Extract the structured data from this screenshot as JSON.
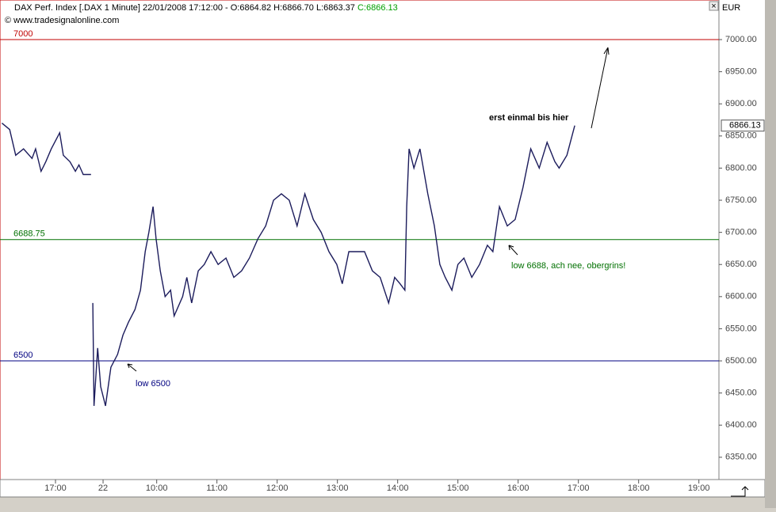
{
  "chart_data": {
    "type": "line",
    "title": "DAX Perf. Index [.DAX  1 Minute] 22/01/2008 17:12:00 - O:6864.82 H:6866.70 L:6863.37",
    "title_close": "C:6866.13",
    "source": "© www.tradesignalonline.com",
    "currency": "EUR",
    "last_label": "6866.13",
    "xlim": [
      -0.921,
      11.013
    ],
    "ylim": [
      6315.3,
      7061.6
    ],
    "xticks": [
      {
        "value": 0,
        "label": "17:00"
      },
      {
        "value": 0.79,
        "label": "22"
      },
      {
        "value": 1.68,
        "label": "10:00"
      },
      {
        "value": 2.68,
        "label": "11:00"
      },
      {
        "value": 3.68,
        "label": "12:00"
      },
      {
        "value": 4.68,
        "label": "13:00"
      },
      {
        "value": 5.68,
        "label": "14:00"
      },
      {
        "value": 6.68,
        "label": "15:00"
      },
      {
        "value": 7.68,
        "label": "16:00"
      },
      {
        "value": 8.68,
        "label": "17:00"
      },
      {
        "value": 9.68,
        "label": "18:00"
      },
      {
        "value": 10.68,
        "label": "19:00"
      }
    ],
    "yticks": [
      {
        "value": 6350,
        "label": "6350.00"
      },
      {
        "value": 6400,
        "label": "6400.00"
      },
      {
        "value": 6450,
        "label": "6450.00"
      },
      {
        "value": 6500,
        "label": "6500.00"
      },
      {
        "value": 6550,
        "label": "6550.00"
      },
      {
        "value": 6600,
        "label": "6600.00"
      },
      {
        "value": 6650,
        "label": "6650.00"
      },
      {
        "value": 6700,
        "label": "6700.00"
      },
      {
        "value": 6750,
        "label": "6750.00"
      },
      {
        "value": 6800,
        "label": "6800.00"
      },
      {
        "value": 6850,
        "label": "6850.00"
      },
      {
        "value": 6900,
        "label": "6900.00"
      },
      {
        "value": 6950,
        "label": "6950.00"
      },
      {
        "value": 7000,
        "label": "7000.00"
      }
    ],
    "levels": [
      {
        "value": 7000,
        "color": "#c00000"
      },
      {
        "value": 6688.75,
        "color": "#007000"
      },
      {
        "value": 6500,
        "color": "#000080"
      }
    ],
    "annotations": [
      "low 6500",
      "low 6688, ach nee, obergrins!",
      "erst einmal bis hier"
    ],
    "series": [
      {
        "name": "DAX",
        "color": "#1c1c5c",
        "x": [
          -0.89,
          -0.76,
          -0.66,
          -0.53,
          -0.39,
          -0.33,
          -0.24,
          -0.16,
          -0.07,
          0.07,
          0.13,
          0.24,
          0.33,
          0.39,
          0.46,
          0.59,
          0.61,
          0.62,
          0.64,
          0.7,
          0.75,
          0.83,
          0.92,
          1.03,
          1.12,
          1.21,
          1.32,
          1.41,
          1.49,
          1.55,
          1.62,
          1.67,
          1.74,
          1.82,
          1.91,
          1.97,
          2.11,
          2.18,
          2.26,
          2.37,
          2.47,
          2.58,
          2.7,
          2.83,
          2.96,
          3.09,
          3.22,
          3.36,
          3.49,
          3.62,
          3.75,
          3.88,
          4.01,
          4.14,
          4.28,
          4.41,
          4.54,
          4.67,
          4.76,
          4.87,
          5.0,
          5.13,
          5.26,
          5.39,
          5.53,
          5.63,
          5.72,
          5.8,
          5.83,
          5.87,
          5.95,
          6.05,
          6.18,
          6.29,
          6.38,
          6.47,
          6.58,
          6.68,
          6.78,
          6.91,
          7.04,
          7.17,
          7.26,
          7.37,
          7.5,
          7.63,
          7.76,
          7.89,
          8.03,
          8.16,
          8.29,
          8.36,
          8.49,
          8.62
        ],
        "values": [
          6870,
          6860,
          6820,
          6830,
          6815,
          6830,
          6795,
          6810,
          6830,
          6855,
          6820,
          6810,
          6795,
          6805,
          6790,
          6790,
          null,
          6590,
          6430,
          6520,
          6460,
          6430,
          6490,
          6510,
          6540,
          6560,
          6580,
          6610,
          6670,
          6700,
          6740,
          6690,
          6640,
          6600,
          6610,
          6570,
          6600,
          6630,
          6590,
          6640,
          6650,
          6670,
          6650,
          6660,
          6630,
          6640,
          6660,
          6690,
          6710,
          6750,
          6760,
          6750,
          6710,
          6760,
          6720,
          6700,
          6670,
          6650,
          6620,
          6670,
          6670,
          6670,
          6640,
          6630,
          6590,
          6630,
          6620,
          6610,
          6740,
          6830,
          6800,
          6830,
          6760,
          6710,
          6650,
          6630,
          6610,
          6650,
          6660,
          6630,
          6650,
          6680,
          6670,
          6740,
          6710,
          6720,
          6770,
          6830,
          6800,
          6840,
          6810,
          6800,
          6820,
          6866.13
        ]
      }
    ]
  }
}
